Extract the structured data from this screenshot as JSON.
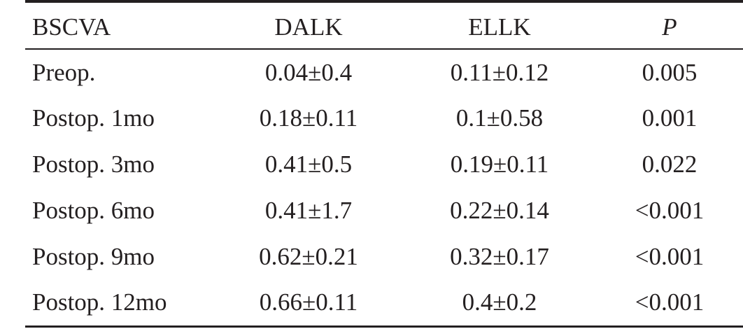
{
  "table": {
    "headers": [
      "BSCVA",
      "DALK",
      "ELLK",
      "P"
    ],
    "rows": [
      [
        "Preop.",
        "0.04±0.4",
        "0.11±0.12",
        "0.005"
      ],
      [
        "Postop. 1mo",
        "0.18±0.11",
        "0.1±0.58",
        "0.001"
      ],
      [
        "Postop. 3mo",
        "0.41±0.5",
        "0.19±0.11",
        "0.022"
      ],
      [
        "Postop. 6mo",
        "0.41±1.7",
        "0.22±0.14",
        "<0.001"
      ],
      [
        "Postop. 9mo",
        "0.62±0.21",
        "0.32±0.17",
        "<0.001"
      ],
      [
        "Postop. 12mo",
        "0.66±0.11",
        "0.4±0.2",
        "<0.001"
      ]
    ]
  }
}
